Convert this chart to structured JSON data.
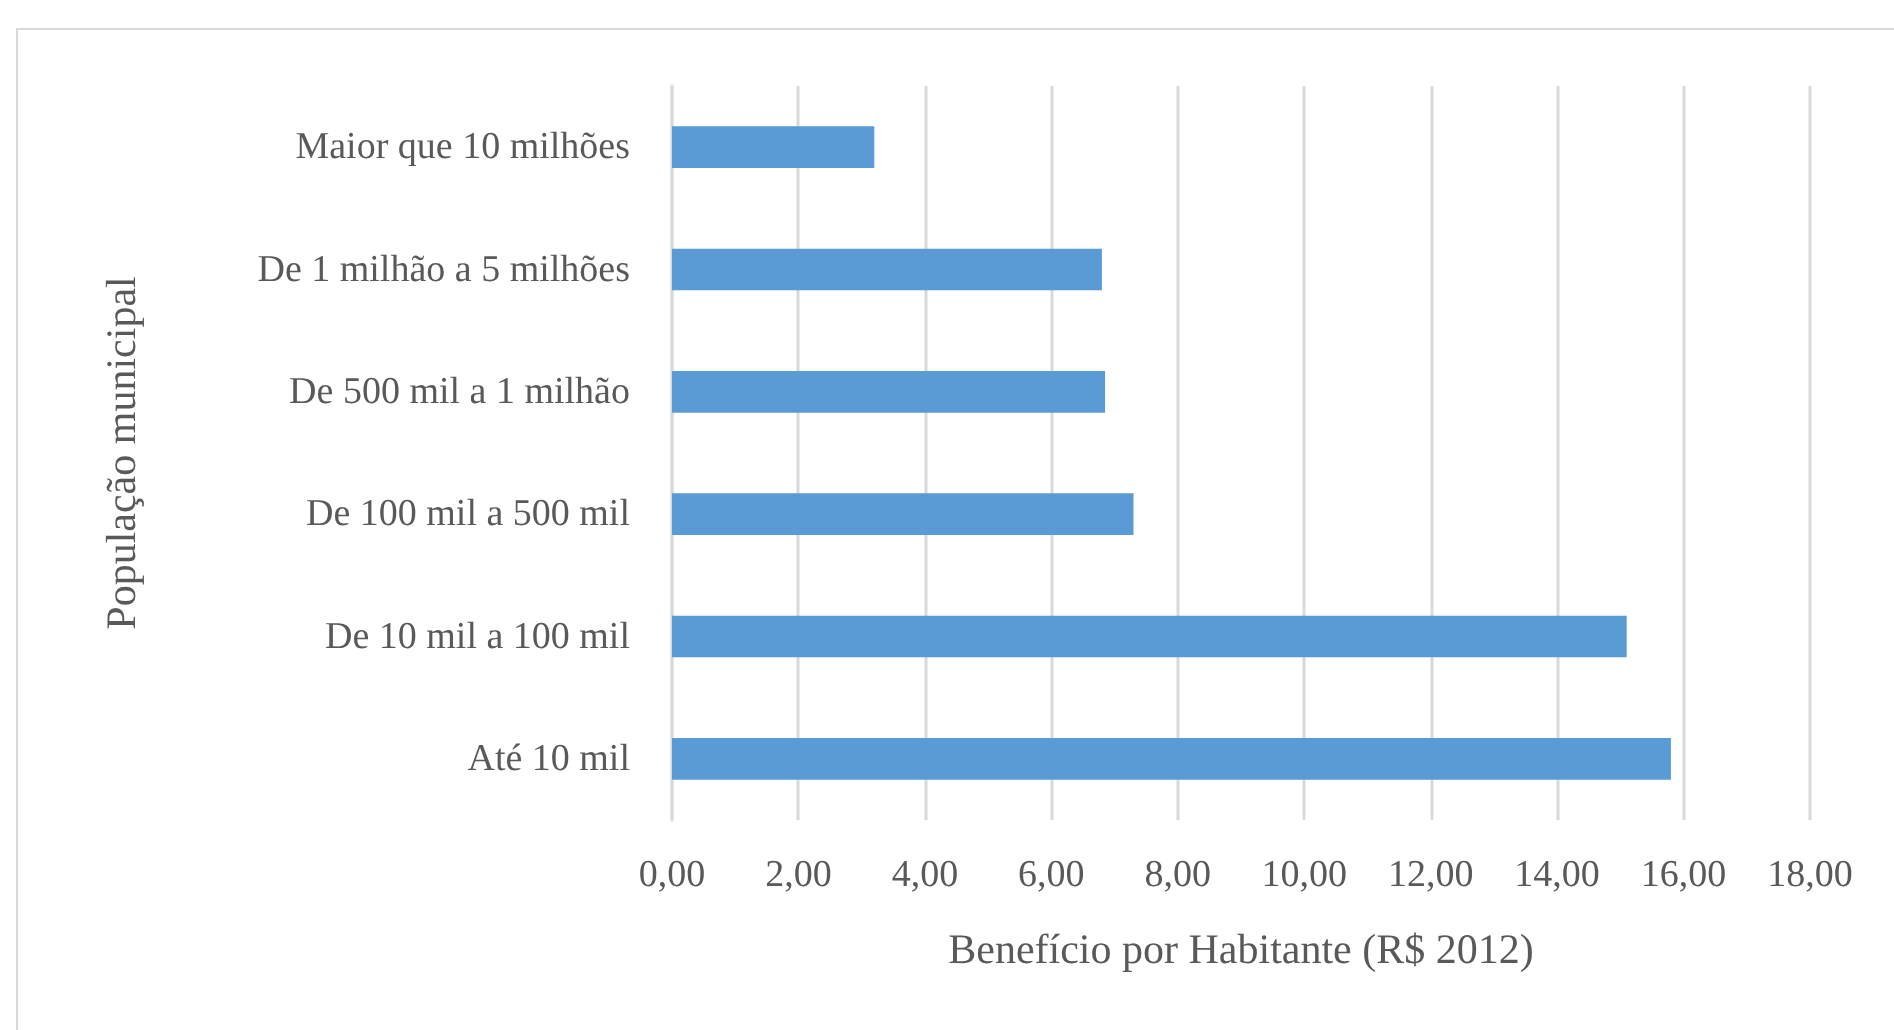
{
  "chart_data": {
    "type": "bar",
    "orientation": "horizontal",
    "categories": [
      "Maior que 10 milhões",
      "De 1 milhão a 5 milhões",
      "De 500 mil a 1 milhão",
      "De 100 mil a 500 mil",
      "De 10 mil a 100 mil",
      "Até 10 mil"
    ],
    "values": [
      3.2,
      6.8,
      6.85,
      7.3,
      15.1,
      15.8
    ],
    "color": "#5b9bd5",
    "xlabel": "Benefício por Habitante (R$ 2012)",
    "ylabel": "População municipal",
    "xlim": [
      0,
      18
    ],
    "xticks": [
      {
        "value": 0,
        "label": "0,00"
      },
      {
        "value": 2,
        "label": "2,00"
      },
      {
        "value": 4,
        "label": "4,00"
      },
      {
        "value": 6,
        "label": "6,00"
      },
      {
        "value": 8,
        "label": "8,00"
      },
      {
        "value": 10,
        "label": "10,00"
      },
      {
        "value": 12,
        "label": "12,00"
      },
      {
        "value": 14,
        "label": "14,00"
      },
      {
        "value": 16,
        "label": "16,00"
      },
      {
        "value": 18,
        "label": "18,00"
      }
    ],
    "grid": "x"
  }
}
